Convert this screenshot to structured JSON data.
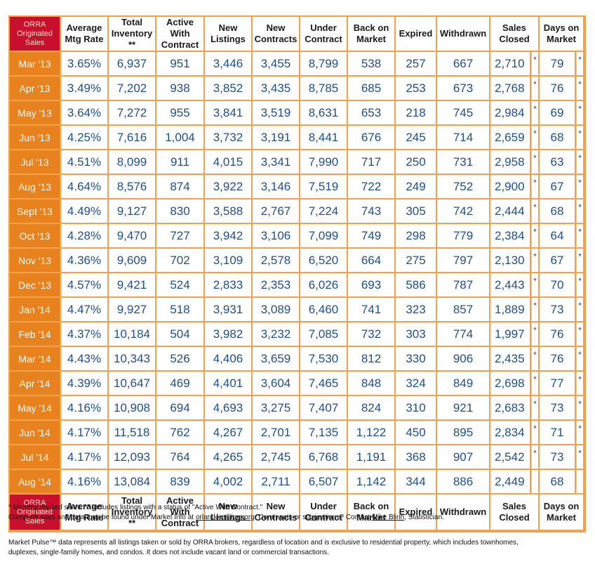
{
  "header": {
    "corner": [
      "ORRA",
      "Originated",
      "Sales"
    ],
    "cols": [
      [
        "Average",
        "Mtg Rate"
      ],
      [
        "Total",
        "Inventory",
        "**"
      ],
      [
        "Active",
        "With",
        "Contract"
      ],
      [
        "New",
        "Listings"
      ],
      [
        "New",
        "Contracts"
      ],
      [
        "Under",
        "Contract"
      ],
      [
        "Back on",
        "Market"
      ],
      [
        "Expired"
      ],
      [
        "Withdrawn"
      ],
      [
        "Sales",
        "Closed"
      ],
      [
        "Days on",
        "Market"
      ]
    ]
  },
  "rows": [
    {
      "month": "Mar '13",
      "vals": [
        "3.65%",
        "6,937",
        "951",
        "3,446",
        "3,455",
        "8,799",
        "538",
        "257",
        "667",
        "2,710",
        "79"
      ],
      "sales_mark": "*",
      "dom_mark": "*"
    },
    {
      "month": "Apr '13",
      "vals": [
        "3.49%",
        "7,202",
        "938",
        "3,852",
        "3,435",
        "8,785",
        "685",
        "253",
        "673",
        "2,768",
        "76"
      ],
      "sales_mark": "*",
      "dom_mark": "*"
    },
    {
      "month": "May '13",
      "vals": [
        "3.64%",
        "7,272",
        "955",
        "3,841",
        "3,519",
        "8,631",
        "653",
        "218",
        "745",
        "2,984",
        "69"
      ],
      "sales_mark": "*",
      "dom_mark": "*"
    },
    {
      "month": "Jun '13",
      "vals": [
        "4.25%",
        "7,616",
        "1,004",
        "3,732",
        "3,191",
        "8,441",
        "676",
        "245",
        "714",
        "2,659",
        "68"
      ],
      "sales_mark": "*",
      "dom_mark": "*"
    },
    {
      "month": "Jul '13",
      "vals": [
        "4.51%",
        "8,099",
        "911",
        "4,015",
        "3,341",
        "7,990",
        "717",
        "250",
        "731",
        "2,958",
        "63"
      ],
      "sales_mark": "*",
      "dom_mark": "*"
    },
    {
      "month": "Aug '13",
      "vals": [
        "4.64%",
        "8,576",
        "874",
        "3,922",
        "3,146",
        "7,519",
        "722",
        "249",
        "752",
        "2,900",
        "67"
      ],
      "sales_mark": "*",
      "dom_mark": "*"
    },
    {
      "month": "Sept '13",
      "vals": [
        "4.49%",
        "9,127",
        "830",
        "3,588",
        "2,767",
        "7,224",
        "743",
        "305",
        "742",
        "2,444",
        "68"
      ],
      "sales_mark": "*",
      "dom_mark": "*"
    },
    {
      "month": "Oct '13",
      "vals": [
        "4.28%",
        "9,470",
        "727",
        "3,942",
        "3,106",
        "7,099",
        "749",
        "298",
        "779",
        "2,384",
        "64"
      ],
      "sales_mark": "*",
      "dom_mark": "*"
    },
    {
      "month": "Nov '13",
      "vals": [
        "4.36%",
        "9,609",
        "702",
        "3,109",
        "2,578",
        "6,520",
        "664",
        "275",
        "797",
        "2,130",
        "67"
      ],
      "sales_mark": "*",
      "dom_mark": "*"
    },
    {
      "month": "Dec '13",
      "vals": [
        "4.57%",
        "9,421",
        "524",
        "2,833",
        "2,353",
        "6,026",
        "693",
        "586",
        "787",
        "2,443",
        "70"
      ],
      "sales_mark": "*",
      "dom_mark": "*"
    },
    {
      "month": "Jan '14",
      "vals": [
        "4.47%",
        "9,927",
        "518",
        "3,931",
        "3,089",
        "6,460",
        "741",
        "323",
        "857",
        "1,889",
        "73"
      ],
      "sales_mark": "*",
      "dom_mark": "*"
    },
    {
      "month": "Feb '14",
      "vals": [
        "4.37%",
        "10,184",
        "504",
        "3,982",
        "3,232",
        "7,085",
        "732",
        "303",
        "774",
        "1,997",
        "76"
      ],
      "sales_mark": "*",
      "dom_mark": "*"
    },
    {
      "month": "Mar '14",
      "vals": [
        "4.43%",
        "10,343",
        "526",
        "4,406",
        "3,659",
        "7,530",
        "812",
        "330",
        "906",
        "2,435",
        "76"
      ],
      "sales_mark": "*",
      "dom_mark": "*"
    },
    {
      "month": "Apr '14",
      "vals": [
        "4.39%",
        "10,647",
        "469",
        "4,401",
        "3,604",
        "7,465",
        "848",
        "324",
        "849",
        "2,698",
        "77"
      ],
      "sales_mark": "*",
      "dom_mark": "*"
    },
    {
      "month": "May '14",
      "vals": [
        "4.16%",
        "10,908",
        "694",
        "4,693",
        "3,275",
        "7,407",
        "824",
        "310",
        "921",
        "2,683",
        "73"
      ],
      "sales_mark": "*",
      "dom_mark": "*"
    },
    {
      "month": "Jun '14",
      "vals": [
        "4.17%",
        "11,518",
        "762",
        "4,267",
        "2,701",
        "7,135",
        "1,122",
        "450",
        "895",
        "2,834",
        "71"
      ],
      "sales_mark": "*",
      "dom_mark": "*"
    },
    {
      "month": "Jul '14",
      "vals": [
        "4.17%",
        "12,093",
        "764",
        "4,265",
        "2,745",
        "6,768",
        "1,191",
        "368",
        "907",
        "2,542",
        "73"
      ],
      "sales_mark": "*",
      "dom_mark": "*"
    },
    {
      "month": "Aug '14",
      "vals": [
        "4.16%",
        "13,084",
        "839",
        "4,002",
        "2,711",
        "6,507",
        "1,142",
        "344",
        "886",
        "2,449",
        "68"
      ],
      "sales_mark": "",
      "dom_mark": ""
    }
  ],
  "notes": {
    "line1": "* Monthly revised sales. ** Includes listings with a status of \"Active With Contract.\"",
    "line2_a": "Complete stats and data may be found under Market Info at ",
    "line2_link": "orlandorealtors.org",
    "line2_b": ". Comments or suggestions? Contact ",
    "line2_contact": "Mike Blinn",
    "line2_c": ", Statistician.",
    "line3": "Market Pulse™ data represents all listings taken or sold by ORRA brokers, regardless of location and is exclusive to residential property, which includes townhomes,",
    "line4": "duplexes, single-family homes, and condos. It does not include vacant land or commercial transactions."
  }
}
